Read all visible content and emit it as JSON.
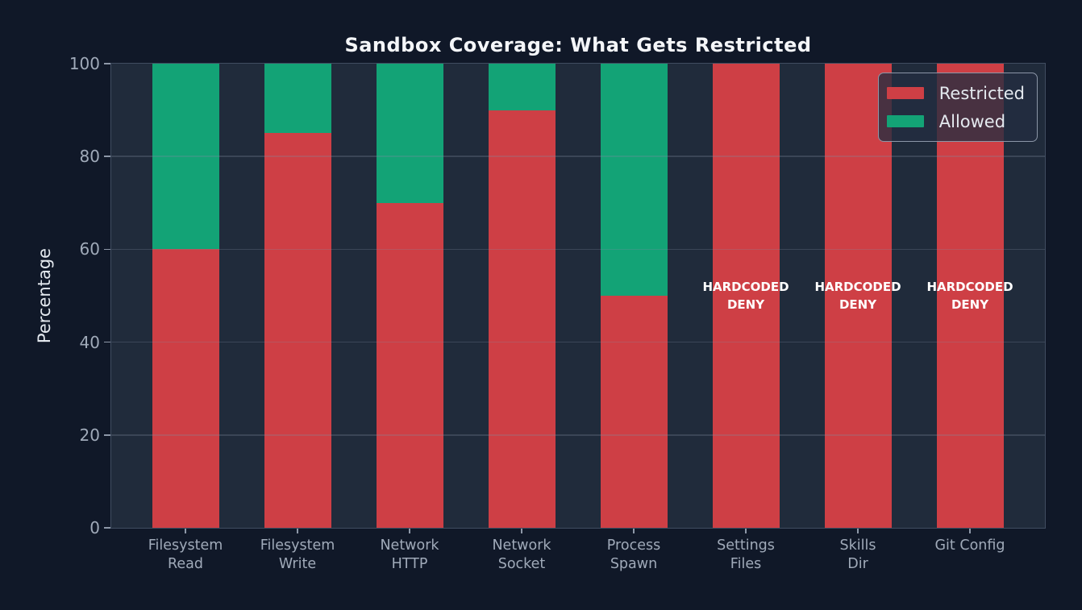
{
  "chart_data": {
    "type": "bar",
    "stacked": true,
    "title": "Sandbox Coverage: What Gets Restricted",
    "ylabel": "Percentage",
    "xlabel": "",
    "ylim": [
      0,
      100
    ],
    "yticks": [
      0,
      20,
      40,
      60,
      80,
      100
    ],
    "grid": true,
    "categories": [
      "Filesystem\nRead",
      "Filesystem\nWrite",
      "Network\nHTTP",
      "Network\nSocket",
      "Process\nSpawn",
      "Settings\nFiles",
      "Skills\nDir",
      "Git Config"
    ],
    "series": [
      {
        "name": "Restricted",
        "color": "#ce3f45",
        "values": [
          60,
          85,
          70,
          90,
          50,
          100,
          100,
          100
        ]
      },
      {
        "name": "Allowed",
        "color": "#13a376",
        "values": [
          40,
          15,
          30,
          10,
          50,
          0,
          0,
          0
        ]
      }
    ],
    "annotations": [
      {
        "category": "Settings Files",
        "category_index": 5,
        "text": "HARDCODED\nDENY"
      },
      {
        "category": "Skills Dir",
        "category_index": 6,
        "text": "HARDCODED\nDENY"
      },
      {
        "category": "Git Config",
        "category_index": 7,
        "text": "HARDCODED\nDENY"
      }
    ],
    "legend": {
      "position": "upper right",
      "entries": [
        "Restricted",
        "Allowed"
      ]
    },
    "colors": {
      "figure_background": "#101828",
      "plot_background": "#202b3b",
      "spine": "#404d61",
      "grid_line": "rgba(128,140,160,0.28)",
      "tick_label": "#a0aab9",
      "axis_label": "#e4e9ef",
      "title": "#f4f6f9",
      "annotation_text": "#ffffff",
      "restricted": "#ce3f45",
      "allowed": "#13a376"
    }
  }
}
